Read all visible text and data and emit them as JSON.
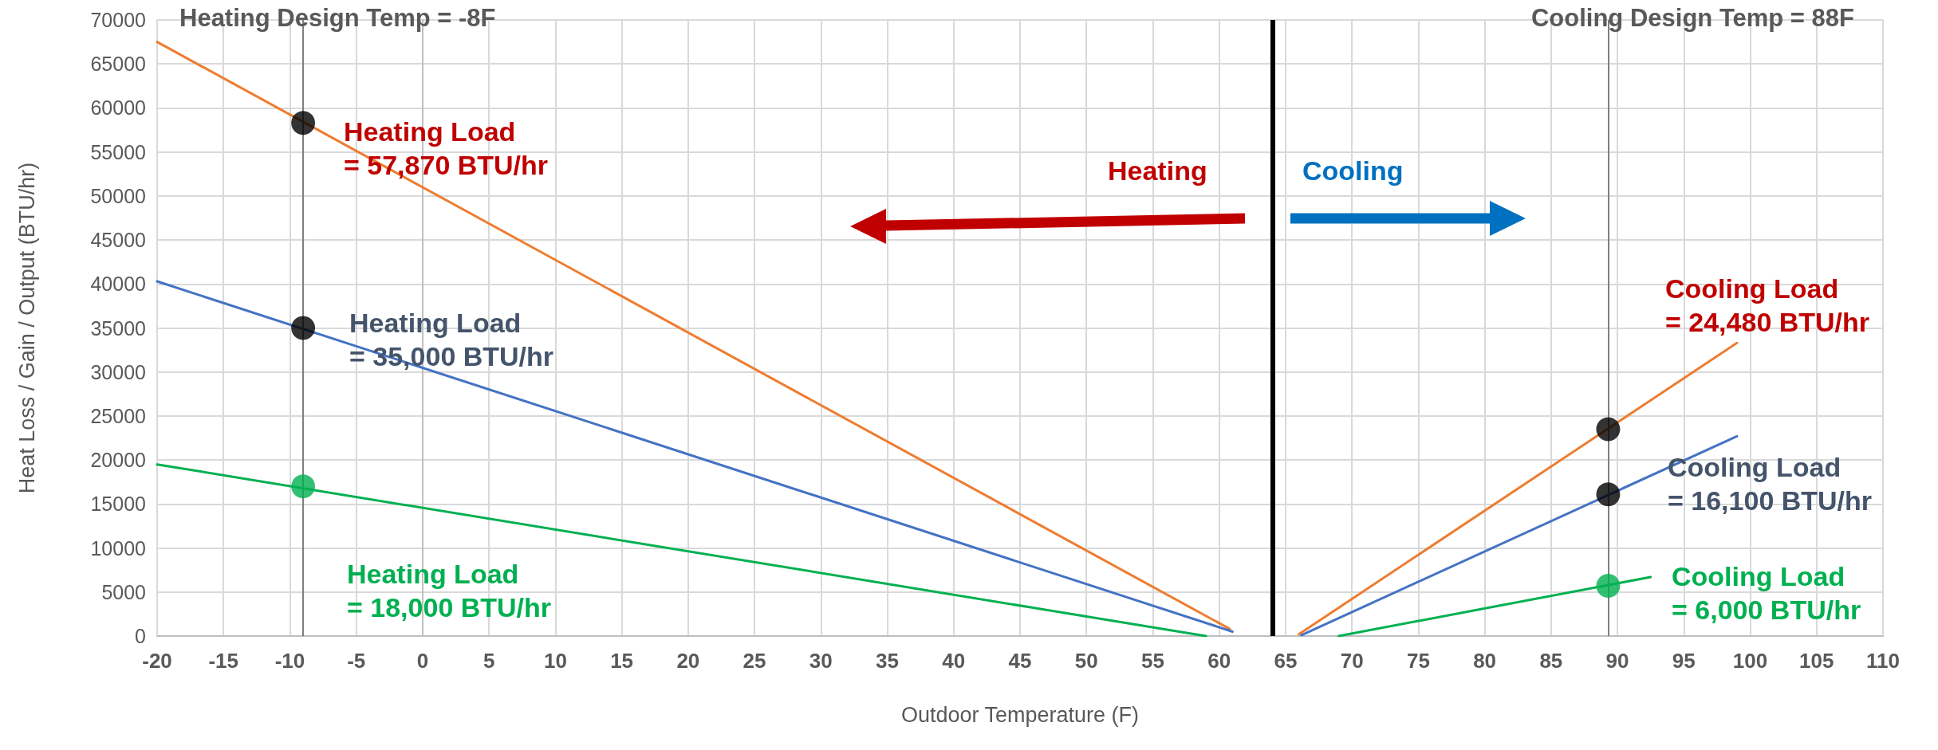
{
  "chart_data": {
    "type": "line",
    "title": "Heating Design Temp = -8F",
    "subtitle": "Cooling Design Temp = 88F",
    "xlabel": "Outdoor Temperature (F)",
    "ylabel": "Heat Loss / Gain / Output (BTU/hr)",
    "xlim": [
      -20,
      110
    ],
    "xticks": [
      -20,
      -15,
      -10,
      -5,
      0,
      5,
      10,
      15,
      20,
      25,
      30,
      35,
      40,
      45,
      50,
      55,
      60,
      65,
      70,
      75,
      80,
      85,
      90,
      95,
      100,
      105,
      110
    ],
    "ylim": [
      0,
      70000
    ],
    "yticks": [
      0,
      5000,
      10000,
      15000,
      20000,
      25000,
      30000,
      35000,
      40000,
      45000,
      50000,
      55000,
      60000,
      65000,
      70000
    ],
    "grid": true,
    "marker": "none",
    "line_style": "solid",
    "series": [
      {
        "color": "#ed7d31",
        "x": [
          -20,
          60.8
        ],
        "values": [
          67500,
          800
        ]
      },
      {
        "color": "#ed7d31",
        "x": [
          66,
          99
        ],
        "values": [
          200,
          33300
        ]
      },
      {
        "color": "#4472c4",
        "x": [
          -20,
          61
        ],
        "values": [
          40300,
          500
        ]
      },
      {
        "color": "#4472c4",
        "x": [
          66.2,
          99
        ],
        "values": [
          100,
          22700
        ]
      },
      {
        "color": "#00b050",
        "x": [
          -20,
          59
        ],
        "values": [
          19500,
          0
        ]
      },
      {
        "color": "#00b050",
        "x": [
          69,
          92.5
        ],
        "values": [
          0,
          6700
        ]
      },
      {
        "type": "scatter",
        "marker": "circle",
        "x": [
          -9,
          -9,
          -9,
          89.3,
          89.3,
          89.3
        ],
        "values": [
          58300,
          35000,
          17000,
          23500,
          16100,
          5700
        ],
        "colors": [
          "#000000",
          "#000000",
          "#00b050",
          "#000000",
          "#000000",
          "#00b050"
        ]
      }
    ],
    "ref_lines": [
      {
        "axis": "x",
        "value": -9,
        "color": "#7f7f7f"
      },
      {
        "axis": "x",
        "value": 89.3,
        "color": "#7f7f7f"
      },
      {
        "axis": "x",
        "value": 64,
        "color": "#000000"
      }
    ],
    "annotations": [
      "Heating Load\n= 57,870 BTU/hr",
      "Heating Load\n= 35,000 BTU/hr",
      "Heating Load\n= 18,000 BTU/hr",
      "Cooling Load\n= 24,480 BTU/hr",
      "Cooling Load\n= 16,100 BTU/hr",
      "Cooling Load\n= 6,000 BTU/hr",
      "Heating",
      "Cooling"
    ]
  }
}
